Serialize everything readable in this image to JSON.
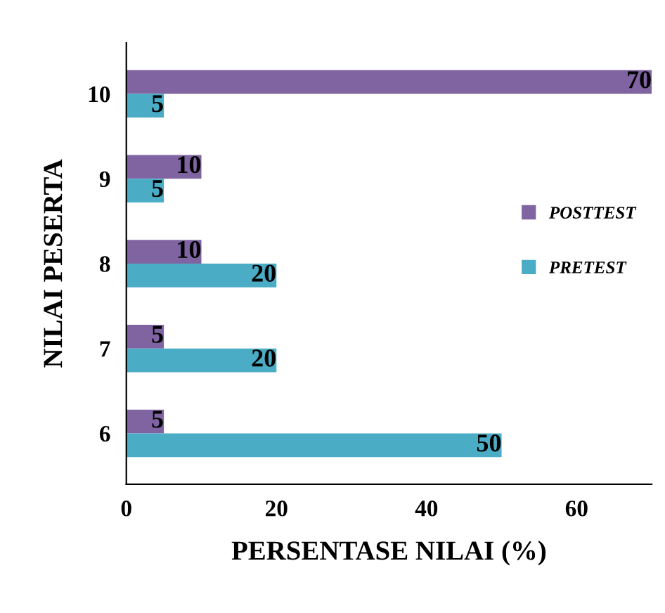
{
  "chart_data": {
    "type": "bar",
    "orientation": "horizontal",
    "xlabel": "PERSENTASE NILAI (%)",
    "ylabel": "NILAI PESERTA",
    "categories": [
      "10",
      "9",
      "8",
      "7",
      "6"
    ],
    "series": [
      {
        "name": "POSTTEST",
        "color": "#8064a2",
        "values": [
          70,
          10,
          10,
          5,
          5
        ]
      },
      {
        "name": "PRETEST",
        "color": "#4bacc6",
        "values": [
          5,
          5,
          20,
          20,
          50
        ]
      }
    ],
    "xlim": [
      0,
      70
    ],
    "xticks": [
      0,
      20,
      40,
      60
    ],
    "data_labels": true,
    "legend": "right",
    "grid": false
  }
}
